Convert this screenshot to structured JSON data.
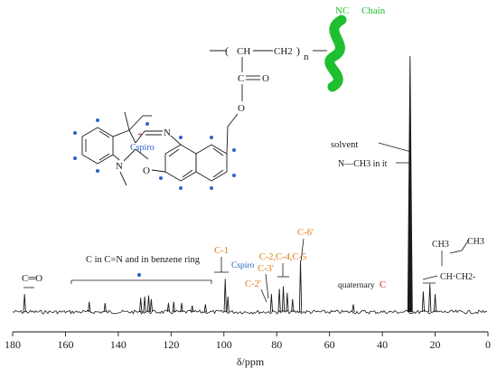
{
  "colors": {
    "ink": "#1a1a1a",
    "orange": "#e07a10",
    "blue": "#2a62c8",
    "red": "#d01818",
    "green": "#1fbf2f"
  },
  "structure": {
    "nc_label": "NC",
    "chain_label": "Chain",
    "ch": "CH",
    "ch2": "CH2",
    "n": "n",
    "c": "C",
    "o": "O",
    "n_atom": "N",
    "n_methyl": "N",
    "cspiro": "Cspiro",
    "plus": "+"
  },
  "annotations": {
    "solvent": "solvent",
    "n_ch3": "N—CH3 in it",
    "co": "C═O",
    "c_in_cn": "C in C=N and in benzene ring",
    "c1": "C-1",
    "cspiro_peak": "Cspiro",
    "c3p": "C-3'",
    "c2p": "C-2'",
    "c245": "C-2,C-4,C-5",
    "c6p": "C-6'",
    "quaternary": "quaternary",
    "quaternary_c": "C",
    "ch3_top": "CH3",
    "ch_ch2": "CH·CH2-"
  },
  "chart_data": {
    "type": "line",
    "xlabel": "δ/ppm",
    "xlim": [
      180,
      0
    ],
    "x_reversed": true,
    "ticks": [
      "180",
      "160",
      "140",
      "120",
      "100",
      "80",
      "60",
      "40",
      "20",
      "0"
    ],
    "peaks": [
      {
        "ppm": 175.5,
        "height": 0.07
      },
      {
        "ppm": 151.0,
        "height": 0.04
      },
      {
        "ppm": 145.0,
        "height": 0.035
      },
      {
        "ppm": 131.5,
        "height": 0.055
      },
      {
        "ppm": 130.0,
        "height": 0.06
      },
      {
        "ppm": 128.5,
        "height": 0.065
      },
      {
        "ppm": 127.5,
        "height": 0.05
      },
      {
        "ppm": 121.0,
        "height": 0.035
      },
      {
        "ppm": 119.0,
        "height": 0.04
      },
      {
        "ppm": 116.0,
        "height": 0.035
      },
      {
        "ppm": 112.0,
        "height": 0.025
      },
      {
        "ppm": 107.0,
        "height": 0.03
      },
      {
        "ppm": 99.5,
        "height": 0.13
      },
      {
        "ppm": 98.5,
        "height": 0.06
      },
      {
        "ppm": 82.0,
        "height": 0.07
      },
      {
        "ppm": 79.0,
        "height": 0.09
      },
      {
        "ppm": 77.5,
        "height": 0.1
      },
      {
        "ppm": 76.0,
        "height": 0.075
      },
      {
        "ppm": 74.0,
        "height": 0.05
      },
      {
        "ppm": 71.0,
        "height": 0.2
      },
      {
        "ppm": 51.0,
        "height": 0.03
      },
      {
        "ppm": 29.5,
        "height": 1.0
      },
      {
        "ppm": 24.5,
        "height": 0.08
      },
      {
        "ppm": 22.0,
        "height": 0.11
      },
      {
        "ppm": 20.0,
        "height": 0.07
      }
    ]
  }
}
